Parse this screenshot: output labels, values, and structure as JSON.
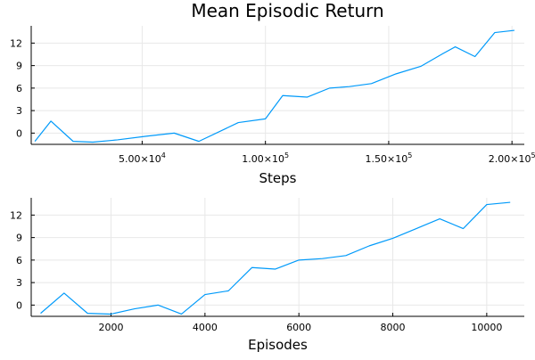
{
  "chart_data": [
    {
      "type": "line",
      "title": "Mean Episodic Return",
      "xlabel": "Steps",
      "ylabel": "",
      "xlim": [
        5000,
        205000
      ],
      "ylim": [
        -1.5,
        14.3
      ],
      "xticks": [
        50000,
        100000,
        150000,
        200000
      ],
      "xtick_labels": [
        {
          "mantissa": "5.00×10",
          "exp": "4"
        },
        {
          "mantissa": "1.00×10",
          "exp": "5"
        },
        {
          "mantissa": "1.50×10",
          "exp": "5"
        },
        {
          "mantissa": "2.00×10",
          "exp": "5"
        }
      ],
      "yticks": [
        0,
        3,
        6,
        9,
        12
      ],
      "ytick_labels": [
        "0",
        "3",
        "6",
        "9",
        "12"
      ],
      "grid": true,
      "legend": "none",
      "series": [
        {
          "color": "#009AFA",
          "x": [
            6500,
            13000,
            22000,
            30000,
            40000,
            52000,
            63000,
            73000,
            89000,
            100000,
            107000,
            117000,
            126000,
            134000,
            143000,
            153000,
            163000,
            172000,
            177000,
            185000,
            193000,
            201000
          ],
          "y": [
            -1.1,
            1.6,
            -1.1,
            -1.2,
            -0.9,
            -0.4,
            0.0,
            -1.1,
            1.4,
            1.9,
            5.0,
            4.8,
            6.0,
            6.2,
            6.6,
            7.9,
            8.9,
            10.6,
            11.5,
            10.2,
            13.4,
            13.7
          ]
        }
      ]
    },
    {
      "type": "line",
      "title": "",
      "xlabel": "Episodes",
      "ylabel": "",
      "xlim": [
        300,
        10800
      ],
      "ylim": [
        -1.5,
        14.3
      ],
      "xticks": [
        2000,
        4000,
        6000,
        8000,
        10000
      ],
      "xtick_labels": [
        "2000",
        "4000",
        "6000",
        "8000",
        "10000"
      ],
      "yticks": [
        0,
        3,
        6,
        9,
        12
      ],
      "ytick_labels": [
        "0",
        "3",
        "6",
        "9",
        "12"
      ],
      "grid": true,
      "legend": "none",
      "series": [
        {
          "color": "#009AFA",
          "x": [
            500,
            1000,
            1500,
            2000,
            2500,
            3000,
            3500,
            4000,
            4500,
            5000,
            5500,
            6000,
            6500,
            7000,
            7500,
            8000,
            8500,
            9000,
            9500,
            10000,
            10500
          ],
          "y": [
            -1.1,
            1.6,
            -1.1,
            -1.2,
            -0.5,
            0.0,
            -1.2,
            1.4,
            1.9,
            5.0,
            4.8,
            6.0,
            6.2,
            6.6,
            7.9,
            8.9,
            10.2,
            11.5,
            10.2,
            13.4,
            13.7
          ]
        }
      ]
    }
  ]
}
